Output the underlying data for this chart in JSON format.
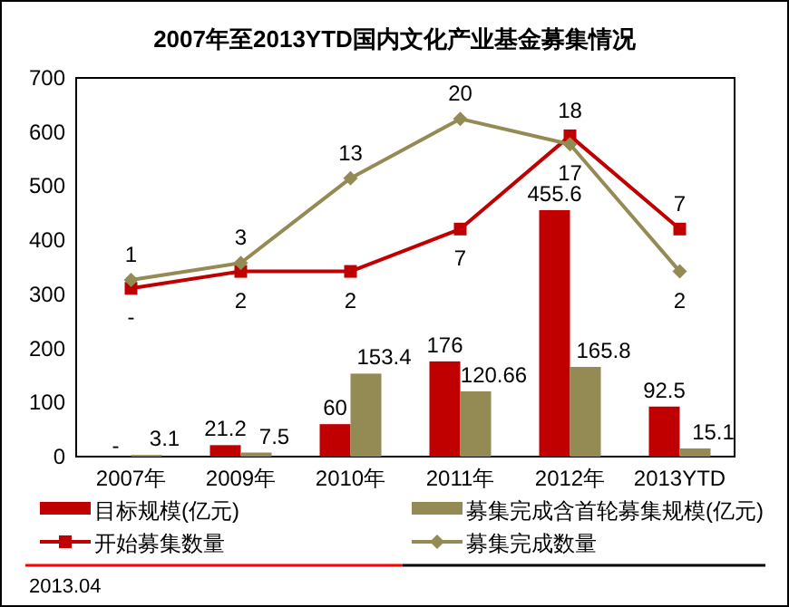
{
  "chart_data": {
    "type": "bar",
    "title": "2007年至2013YTD国内文化产业基金募集情况",
    "categories": [
      "2007年",
      "2009年",
      "2010年",
      "2011年",
      "2012年",
      "2013YTD"
    ],
    "series": [
      {
        "name": "目标规模(亿元)",
        "color": "#c00000",
        "values": [
          0,
          21.2,
          60,
          176,
          455.6,
          92.5
        ],
        "value_labels": [
          "-",
          "21.2",
          "60",
          "176",
          "455.6",
          "92.5"
        ]
      },
      {
        "name": "募集完成含首轮募集规模(亿元)",
        "color": "#948a54",
        "values": [
          3.1,
          7.5,
          153.4,
          120.66,
          165.8,
          15.1
        ],
        "value_labels": [
          "3.1",
          "7.5",
          "153.4",
          "120.66",
          "165.8",
          "15.1"
        ]
      },
      {
        "name": "开始募集数量",
        "type": "line",
        "axis": "y2",
        "marker": "square",
        "color": "#c00000",
        "values": [
          0,
          2,
          2,
          7,
          18,
          7
        ],
        "value_labels": [
          "-",
          "2",
          "2",
          "7",
          "18",
          "7"
        ]
      },
      {
        "name": "募集完成数量",
        "type": "line",
        "axis": "y2",
        "marker": "diamond",
        "color": "#948a54",
        "values": [
          1,
          3,
          13,
          20,
          17,
          2
        ],
        "value_labels": [
          "1",
          "3",
          "13",
          "20",
          "17",
          "2"
        ]
      }
    ],
    "ylim": [
      0,
      700
    ],
    "yticks": [
      0,
      100,
      200,
      300,
      400,
      500,
      600,
      700
    ],
    "y2lim": [
      -19.85,
      24.83
    ],
    "grid": false,
    "legend": "bottom",
    "annotations": [
      "2013.04"
    ]
  }
}
